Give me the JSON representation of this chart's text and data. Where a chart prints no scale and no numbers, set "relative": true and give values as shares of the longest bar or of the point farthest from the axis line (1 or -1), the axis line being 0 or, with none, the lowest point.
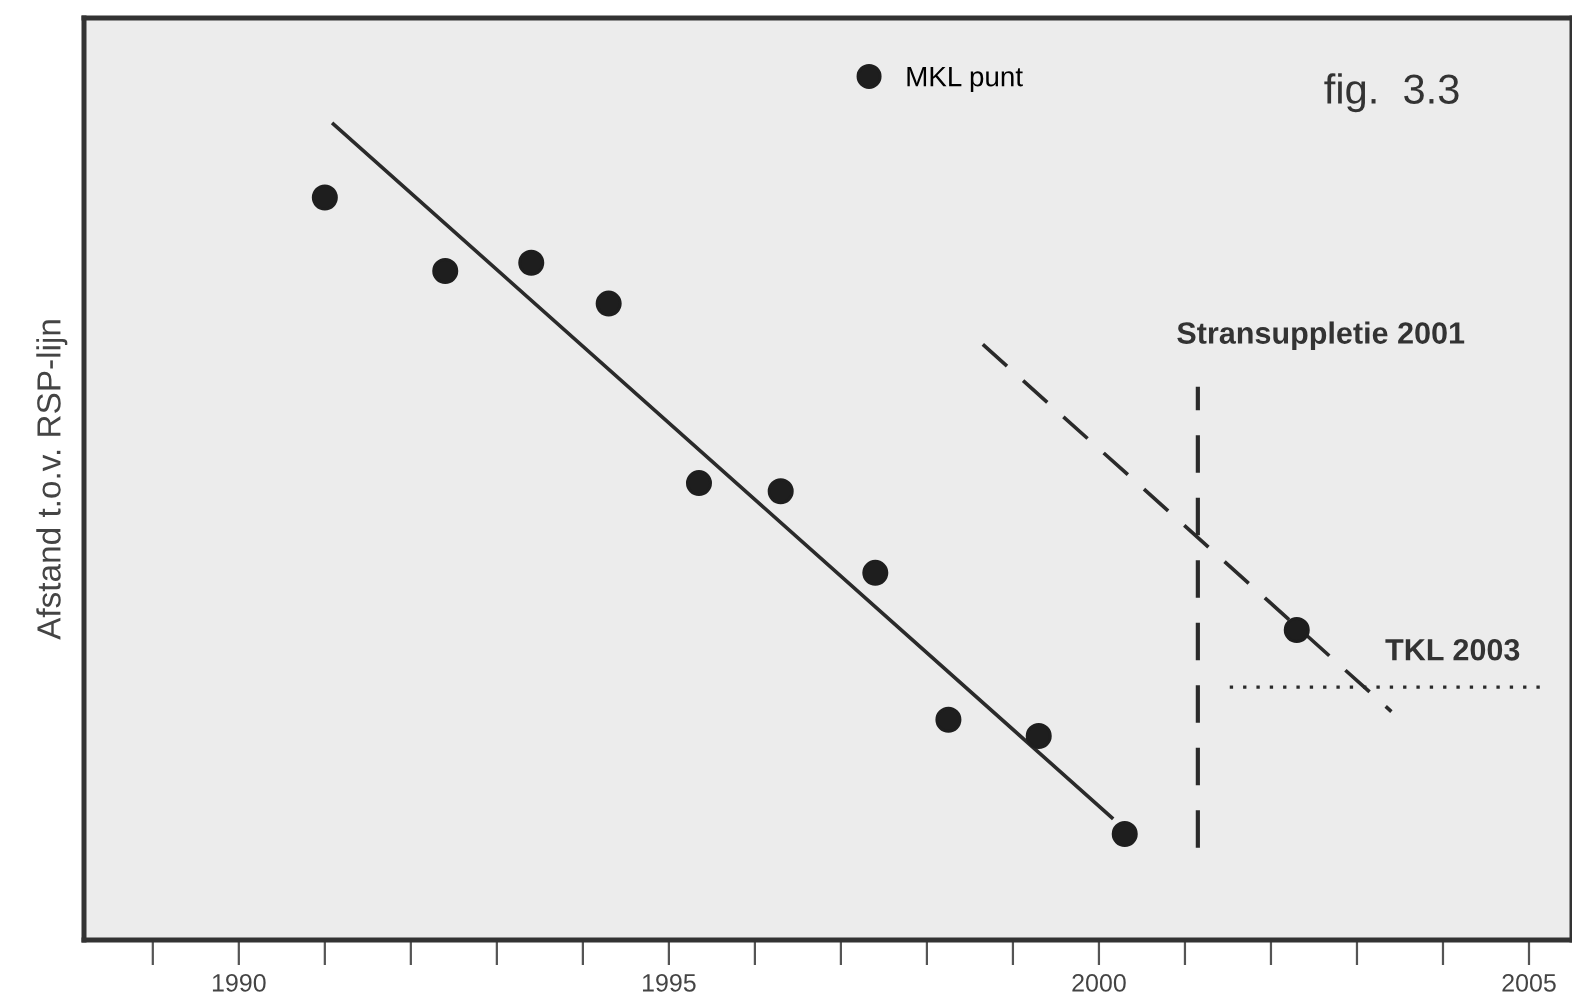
{
  "chart_data": {
    "type": "scatter",
    "relative": true,
    "ylabel": "Afstand t.o.v. RSP-lijn",
    "annotations": [
      "fig.  3.3"
    ],
    "series": [
      {
        "name": "MKL punt",
        "color": "#1e1e1e",
        "marker": "circle",
        "x": [
          1991.0,
          1992.4,
          1993.4,
          1994.3,
          1995.35,
          1996.3,
          1997.4,
          1998.25,
          1999.3,
          2000.3,
          2002.3
        ],
        "values": [
          0.91,
          0.82,
          0.83,
          0.78,
          0.56,
          0.55,
          0.45,
          0.27,
          0.25,
          0.13,
          0.38
        ]
      },
      {
        "type": "line",
        "color": "#2a2a2a",
        "line_style": "solid",
        "x": [
          1991.1,
          2000.15
        ],
        "values": [
          1.0,
          0.15
        ]
      },
      {
        "type": "line",
        "color": "#2a2a2a",
        "line_style": "dashed",
        "x": [
          1998.65,
          2003.4
        ],
        "values": [
          0.73,
          0.28
        ]
      }
    ],
    "ref_lines": [
      {
        "axis": "x",
        "value": 2001.15,
        "label": "Stransuppletie 2001",
        "line_style": "dashed",
        "color": "#2a2a2a"
      },
      {
        "axis": "y",
        "value": 0.31,
        "label": "TKL 2003",
        "line_style": "dotted",
        "color": "#2a2a2a"
      }
    ],
    "xlim": [
      1988.2,
      2005.5
    ],
    "xticks": [
      {
        "value": 1989,
        "label": null
      },
      1990,
      {
        "value": 1991,
        "label": null
      },
      {
        "value": 1992,
        "label": null
      },
      {
        "value": 1993,
        "label": null
      },
      {
        "value": 1994,
        "label": null
      },
      1995,
      {
        "value": 1996,
        "label": null
      },
      {
        "value": 1997,
        "label": null
      },
      {
        "value": 1998,
        "label": null
      },
      {
        "value": 1999,
        "label": null
      },
      2000,
      {
        "value": 2001,
        "label": null
      },
      {
        "value": 2002,
        "label": null
      },
      {
        "value": 2003,
        "label": null
      },
      {
        "value": 2004,
        "label": null
      },
      2005
    ],
    "tick_labels": "x",
    "grid": false,
    "legend": "top"
  }
}
